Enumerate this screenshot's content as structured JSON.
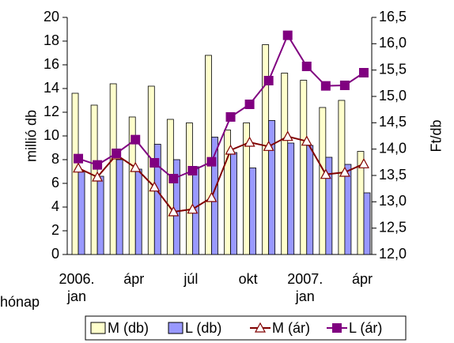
{
  "chart_data": {
    "type": "bar-line",
    "categories": [
      "2006.\njan",
      null,
      null,
      "ápr",
      null,
      null,
      "júl",
      null,
      null,
      "okt",
      null,
      null,
      "2007.\njan",
      null,
      null,
      "ápr"
    ],
    "x_label": "hónap",
    "y_label": "millió db",
    "y2_label": "Ft/db",
    "ylim": [
      0,
      20
    ],
    "yticks": [
      0,
      2,
      4,
      6,
      8,
      10,
      12,
      14,
      16,
      18,
      20
    ],
    "y2lim": [
      12,
      16.5
    ],
    "y2ticks": [
      {
        "value": 12,
        "label": "12,0"
      },
      {
        "value": 12.5,
        "label": "12,5"
      },
      {
        "value": 13,
        "label": "13,0"
      },
      {
        "value": 13.5,
        "label": "13,5"
      },
      {
        "value": 14,
        "label": "14,0"
      },
      {
        "value": 14.5,
        "label": "14,5"
      },
      {
        "value": 15,
        "label": "15,0"
      },
      {
        "value": 15.5,
        "label": "15,5"
      },
      {
        "value": 16,
        "label": "16,0"
      },
      {
        "value": 16.5,
        "label": "16,5"
      }
    ],
    "legend": "bottom",
    "series": [
      {
        "name": "M (db)",
        "kind": "bar",
        "color": "#ffffcc",
        "values": [
          13.6,
          12.6,
          14.4,
          11.6,
          14.2,
          11.4,
          11.1,
          16.8,
          10.5,
          11.1,
          17.7,
          15.3,
          14.7,
          12.4,
          13.0,
          8.7
        ]
      },
      {
        "name": "L (db)",
        "kind": "bar",
        "color": "#9999ff",
        "values": [
          7.0,
          6.6,
          8.0,
          7.2,
          9.3,
          8.0,
          7.4,
          9.9,
          8.6,
          7.3,
          11.3,
          9.4,
          9.2,
          8.2,
          7.6,
          5.2
        ]
      },
      {
        "name": "M (ár)",
        "kind": "line",
        "marker": "triangle",
        "axis": "y2",
        "color": "#800000",
        "values": [
          13.64,
          13.47,
          13.89,
          13.65,
          13.28,
          12.81,
          12.86,
          13.08,
          13.98,
          14.13,
          14.05,
          14.24,
          14.15,
          13.52,
          13.56,
          13.72
        ]
      },
      {
        "name": "L (ár)",
        "kind": "line",
        "marker": "square",
        "axis": "y2",
        "color": "#800080",
        "values": [
          13.82,
          13.7,
          13.92,
          14.18,
          13.74,
          13.44,
          13.59,
          13.76,
          14.61,
          14.85,
          15.3,
          16.16,
          15.57,
          15.2,
          15.21,
          15.45
        ]
      }
    ]
  }
}
